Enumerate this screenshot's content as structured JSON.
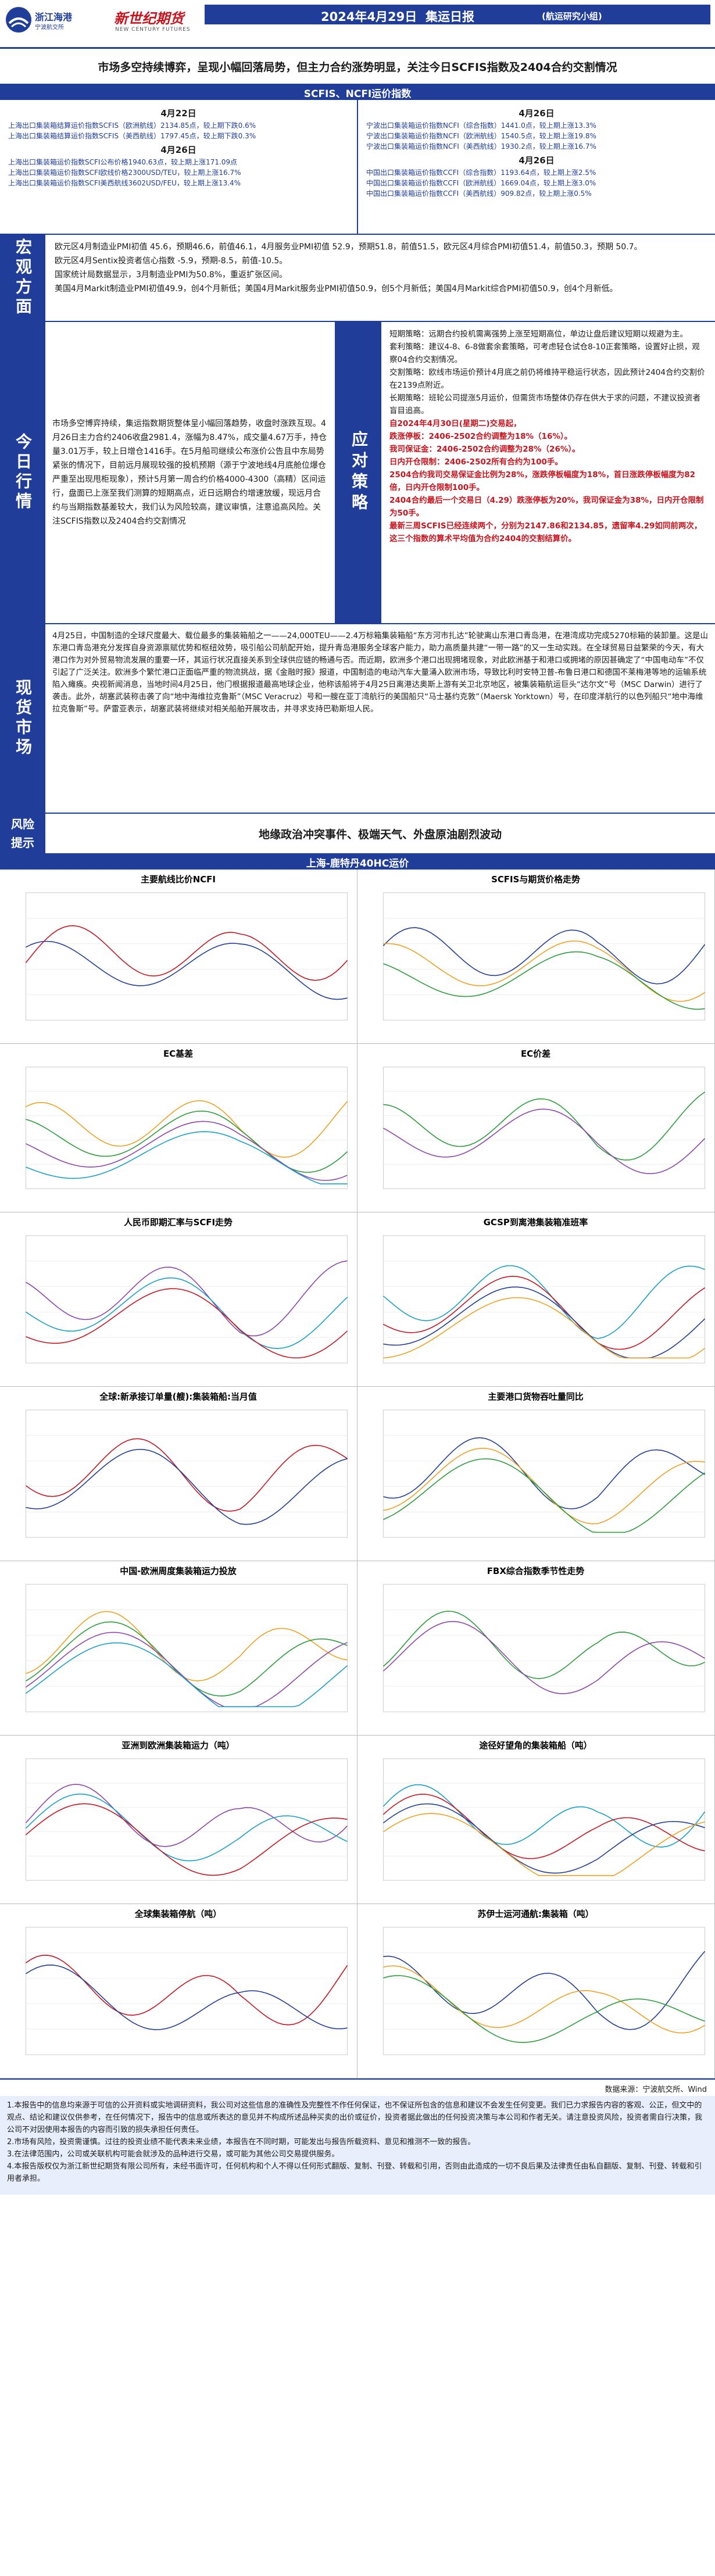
{
  "header": {
    "logo_a_name": "浙江海港",
    "logo_a_sub": "宁波航交所",
    "logo_b_name": "新世纪期货",
    "logo_b_sub": "NEW CENTURY FUTURES",
    "date": "2024年4月29日",
    "title": "集运日报",
    "team": "(航运研究小组)"
  },
  "headline": "市场多空持续博弈，呈现小幅回落局势，但主力合约涨势明显，关注今日SCFIS指数及2404合约交割情况",
  "index_section": {
    "title": "SCFIS、NCFI运价指数",
    "left": {
      "date1": "4月22日",
      "lines1": [
        "上海出口集装箱结算运价指数SCFIS（欧洲航线）2134.85点，较上期下跌0.6%",
        "上海出口集装箱结算运价指数SCFIS（美西航线）1797.45点，较上期下跌0.3%"
      ],
      "date2": "4月26日",
      "lines2": [
        "上海出口集装箱运价指数SCFI公布价格1940.63点，较上期上涨171.09点",
        "上海出口集装箱运价指数SCFI欧线价格2300USD/TEU，较上期上涨16.7%",
        "上海出口集装箱运价指数SCFI美西航线3602USD/FEU，较上期上涨13.4%"
      ]
    },
    "right": {
      "date1": "4月26日",
      "lines1": [
        "宁波出口集装箱运价指数NCFI（综合指数）1441.0点，较上期上涨13.3%",
        "宁波出口集装箱运价指数NCFI（欧洲航线）1540.5点，较上期上涨19.8%",
        "宁波出口集装箱运价指数NCFI（美西航线）1930.2点，较上期上涨16.7%"
      ],
      "date2": "4月26日",
      "lines2": [
        "中国出口集装箱运价指数CCFI（综合指数）1193.64点，较上期上涨2.5%",
        "中国出口集装箱运价指数CCFI（欧洲航线）1669.04点，较上期上涨3.0%",
        "中国出口集装箱运价指数CCFI（美西航线）909.82点，较上期上涨0.5%"
      ]
    }
  },
  "macro": {
    "label": "宏观方面",
    "lines": [
      "欧元区4月制造业PMI初值 45.6，预期46.6，前值46.1，4月服务业PMI初值 52.9，预期51.8，前值51.5，欧元区4月综合PMI初值51.4，前值50.3，预期 50.7。",
      "欧元区4月Sentix投资者信心指数 -5.9，预期-8.5，前值-10.5。",
      "国家统计局数据显示，3月制造业PMI为50.8%，重返扩张区间。",
      "美国4月Markit制造业PMI初值49.9，创4个月新低；美国4月Markit服务业PMI初值50.9，创5个月新低；美国4月Markit综合PMI初值50.9，创4个月新低。"
    ]
  },
  "today": {
    "label_left": "今日行情",
    "label_mid": "应对策略",
    "market_text": "市场多空博弈持续，集运指数期货整体呈小幅回落趋势，收盘时涨跌互现。4月26日主力合约2406收盘2981.4，涨幅为8.47%，成交量4.67万手，持仓量3.01万手，较上日增仓1416手。在5月船司继续公布涨价公告且中东局势紧张的情况下，目前远月展现较强的投机预期（源于宁波地线4月底舱位爆仓严重至出现甩柜现象），预计5月第一周合约价格4000-4300（高精）区间运行，盘面已上涨至我们测算的短期高点，近日远期合约增速放缓，现远月合约与当期指数基差较大，我们认为风险较高，建议审慎，注意追高风险。关注SCFIS指数以及2404合约交割情况",
    "strategy": [
      {
        "text": "短期策略：远期合约投机需离强势上涨至短期高位，单边让盘后建议短期以规避为主。",
        "red": false
      },
      {
        "text": "套利策略：建议4-8、6-8做套余套策略，可考虑轻仓试仓8-10正套策略，设置好止损，观察04合约交割情况。",
        "red": false
      },
      {
        "text": "交割策略：欧线市场运价预计4月底之前仍将维持平稳运行状态，因此预计2404合约交割价在2139点附近。",
        "red": false
      },
      {
        "text": "长期策略：班轮公司提涨5月运价，但需货市场整体仍存在供大于求的问题，不建议投资者盲目追高。",
        "red": false
      },
      {
        "text": "自2024年4月30日(星期二)交易起，",
        "red": true
      },
      {
        "text": "跌涨停板：2406-2502合约调整为18%（16%）。",
        "red": true
      },
      {
        "text": "我司保证金：2406-2502合约调整为28%（26%）。",
        "red": true
      },
      {
        "text": "日内开仓限制：2406-2502所有合约为100手。",
        "red": true
      },
      {
        "text": "2504合约我司交易保证金比例为28%，涨跌停板幅度为18%，首日涨跌停板幅度为82倍，日内开仓限制100手。",
        "red": true
      },
      {
        "text": "2404合约最后一个交易日（4.29）跌涨停板为20%，我司保证金为38%，日内开仓限制为50手。",
        "red": true
      },
      {
        "text": "最新三周SCFIS已经连续两个，分别为2147.86和2134.85，遗留率4.29如同前两次，这三个指数的算术平均值为合约2404的交割结算价。",
        "red": true
      }
    ]
  },
  "spot": {
    "label": "现货市场",
    "text": "4月25日，中国制造的全球尺度最大、载位最多的集装箱船之一——24,000TEU——2.4万标箱集装箱船“东方河市扎达”轮驶离山东港口青岛港，在港湾成功完成5270标箱的装卸量。这是山东港口青岛港充分发挥自身资源禀赋优势和枢纽效势，吸引船公司航配开始，提升青岛港服务全球客户能力，助力高质量共建“一带一路”的又一生动实践。在全球贸易日益繁荣的今天，有大港口作为对外贸易物流发展的重要一环，其运行状况直接关系到全球供应链的畅通与否。而近期，欧洲多个港口出现拥堵现象，对此欧洲基于和港口或拥堵的原因甚确定了“中国电动车”不仅引起了广泛关注。欧洲多个繁忙港口正面临严重的物流挑战，据《金融时报》报道，中国制造的电动汽车大量涌入欧洲市场，导致比利时安特卫普-布鲁日港口和德国不莱梅港等地的运输系统陷入瘫痪。央视新闻消息，当地时间4月25日，他门根据报道最高地球企业，他称该船将于4月25日离港达奥斯上游有关卫北京地区，被集装箱航运巨头“达尔文”号（MSC Darwin）进行了袭击。此外，胡塞武装称击袭了向“地中海维拉克鲁斯”（MSC Veracruz）号和一艘在亚丁湾航行的美国船只“马士基约克敦”（Maersk Yorktown）号，在印度洋航行的以色列船只“地中海维拉克鲁斯”号。萨雷亚表示，胡塞武装将继续对相关船舶开展攻击，并寻求支持巴勒斯坦人民。"
  },
  "risk": {
    "label_line1": "风险",
    "label_line2": "提示",
    "text": "地缘政治冲突事件、极端天气、外盘原油剧烈波动"
  },
  "rate_section": {
    "title": "上海-鹿特丹40HC运价"
  },
  "charts": [
    {
      "name": "chart-ncfi",
      "title": "主要航线比价NCFI"
    },
    {
      "name": "chart-scfis-futures",
      "title": "SCFIS与期货价格走势"
    },
    {
      "name": "chart-ec-basis",
      "title": "EC基差"
    },
    {
      "name": "chart-ec-spread",
      "title": "EC价差"
    },
    {
      "name": "chart-rmb-scfi",
      "title": "人民币即期汇率与SCFI走势"
    },
    {
      "name": "chart-gcsp",
      "title": "GCSP到离港集装箱准班率"
    },
    {
      "name": "chart-throughput",
      "title": "全球:新承接订单量(艘):集装箱船:当月值"
    },
    {
      "name": "chart-port-throughput",
      "title": "主要港口货物吞吐量同比"
    },
    {
      "name": "chart-capacity",
      "title": "中国-欧洲周度集装箱运力投放"
    },
    {
      "name": "chart-fbx",
      "title": "FBX综合指数季节性走势"
    },
    {
      "name": "chart-asia-europe",
      "title": "亚洲到欧洲集装箱运力（吨）"
    },
    {
      "name": "chart-cape",
      "title": "途径好望角的集装箱船（吨）"
    },
    {
      "name": "chart-global-stop",
      "title": "全球集装箱停航（吨）"
    },
    {
      "name": "chart-suez",
      "title": "苏伊士运河通航:集装箱（吨）"
    }
  ],
  "source": "数据来源：宁波航交所、Wind",
  "disclaimer": [
    "1.本报告中的信息均来源于可信的公开资料或实地调研资料，我公司对这些信息的准确性及完整性不作任何保证，也不保证所包含的信息和建议不会发生任何变更。我们已力求报告内容的客观、公正，但文中的观点、结论和建议仅供参考，在任何情况下，报告中的信息或所表达的意见并不构成所述品种买卖的出价或征价，投资者据此做出的任何投资决策与本公司和作者无关。请注意投资风险，投资者需自行决策，我公司不对因使用本报告的内容而引致的损失承担任何责任。",
    "2.市场有风险，投资需谨慎。过往的投资业绩不能代表未来业绩，本报告在不同时期，可能发出与报告所载资料、意见和推测不一致的报告。",
    "3.在法律范围内，公司或关联机构可能会就涉及的品种进行交易，或可能为其他公司交易提供服务。",
    "4.本报告版权仅为浙江新世纪期货有限公司所有，未经书面许可，任何机构和个人不得以任何形式翻版、复制、刊登、转载和引用，否则由此造成的一切不良后果及法律责任由私自翻版、复制、刊登、转载和引用者承担。"
  ]
}
